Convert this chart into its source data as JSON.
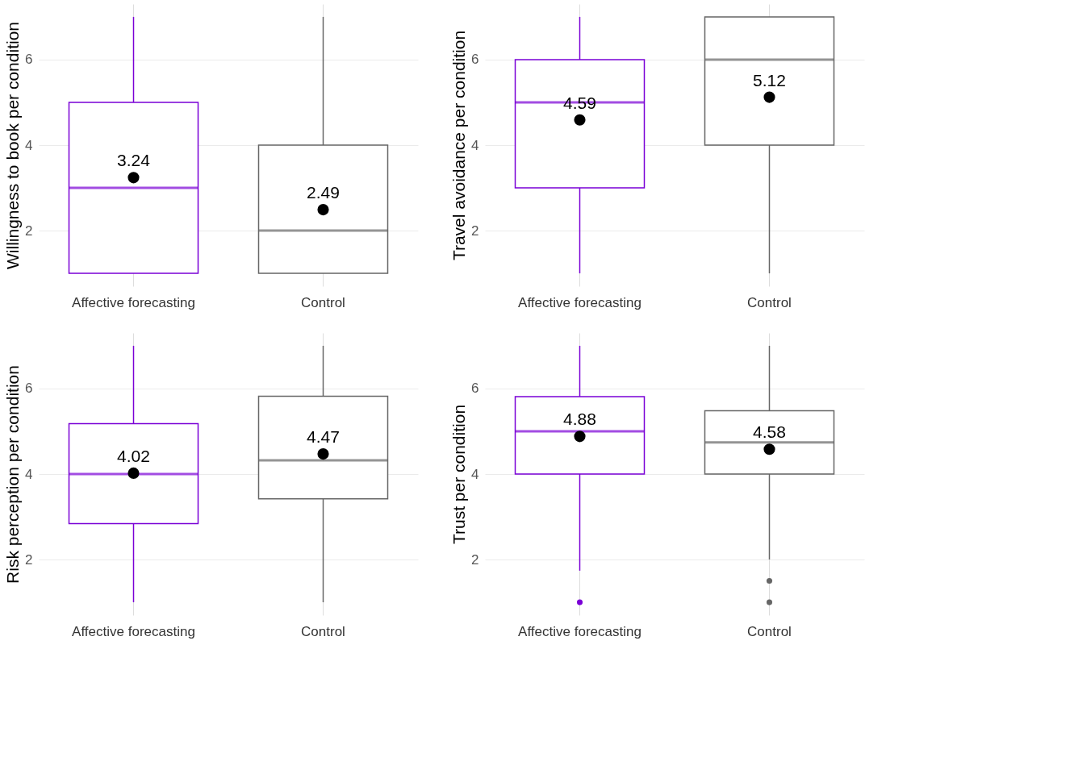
{
  "chart_data": [
    {
      "type": "box",
      "ylabel": "Willingness to book per condition",
      "categories": [
        "Affective forecasting",
        "Control"
      ],
      "colors": [
        "#7a00d6",
        "#666666"
      ],
      "ylim": [
        0.7,
        7.3
      ],
      "yticks": [
        2,
        4,
        6
      ],
      "grid": true,
      "marker": "circle",
      "data_labels": true,
      "boxes": [
        {
          "low": 1,
          "q1": 1,
          "median": 3,
          "q3": 5,
          "high": 7
        },
        {
          "low": 1,
          "q1": 1,
          "median": 2,
          "q3": 4,
          "high": 7
        }
      ],
      "series": [
        {
          "type": "scatter",
          "x": [
            "Affective forecasting",
            "Control"
          ],
          "values": [
            3.24,
            2.49
          ],
          "color": "#000000"
        }
      ]
    },
    {
      "type": "box",
      "ylabel": "Travel avoidance per condition",
      "categories": [
        "Affective forecasting",
        "Control"
      ],
      "colors": [
        "#7a00d6",
        "#666666"
      ],
      "ylim": [
        0.7,
        7.3
      ],
      "yticks": [
        2,
        4,
        6
      ],
      "grid": true,
      "marker": "circle",
      "data_labels": true,
      "boxes": [
        {
          "low": 1,
          "q1": 3,
          "median": 5,
          "q3": 6,
          "high": 7
        },
        {
          "low": 1,
          "q1": 4,
          "median": 6,
          "q3": 7,
          "high": 7
        }
      ],
      "series": [
        {
          "type": "scatter",
          "x": [
            "Affective forecasting",
            "Control"
          ],
          "values": [
            4.59,
            5.12
          ],
          "color": "#000000"
        }
      ]
    },
    {
      "type": "box",
      "ylabel": "Risk perception per condition",
      "categories": [
        "Affective forecasting",
        "Control"
      ],
      "colors": [
        "#7a00d6",
        "#666666"
      ],
      "ylim": [
        0.7,
        7.3
      ],
      "yticks": [
        2,
        4,
        6
      ],
      "grid": true,
      "marker": "circle",
      "data_labels": true,
      "boxes": [
        {
          "low": 1,
          "q1": 2.84,
          "median": 4,
          "q3": 5.18,
          "high": 7
        },
        {
          "low": 1,
          "q1": 3.42,
          "median": 4.32,
          "q3": 5.82,
          "high": 7
        }
      ],
      "series": [
        {
          "type": "scatter",
          "x": [
            "Affective forecasting",
            "Control"
          ],
          "values": [
            4.02,
            4.47
          ],
          "color": "#000000"
        }
      ]
    },
    {
      "type": "box",
      "ylabel": "Trust per condition",
      "categories": [
        "Affective forecasting",
        "Control"
      ],
      "colors": [
        "#7a00d6",
        "#666666"
      ],
      "ylim": [
        0.7,
        7.3
      ],
      "yticks": [
        2,
        4,
        6
      ],
      "grid": true,
      "marker": "circle",
      "data_labels": true,
      "boxes": [
        {
          "low": 1.74,
          "q1": 4,
          "median": 5,
          "q3": 5.81,
          "high": 7,
          "outliers": [
            1
          ]
        },
        {
          "low": 2,
          "q1": 4,
          "median": 4.74,
          "q3": 5.48,
          "high": 7,
          "outliers": [
            1.5,
            1
          ]
        }
      ],
      "series": [
        {
          "type": "scatter",
          "x": [
            "Affective forecasting",
            "Control"
          ],
          "values": [
            4.88,
            4.58
          ],
          "color": "#000000"
        }
      ]
    }
  ]
}
